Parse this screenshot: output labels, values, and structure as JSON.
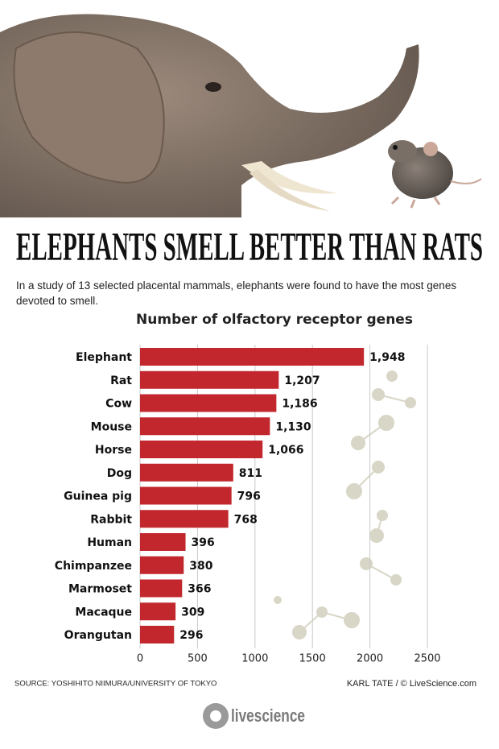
{
  "chart_data": {
    "type": "bar",
    "orientation": "horizontal",
    "title": "ELEPHANTS SMELL BETTER THAN RATS",
    "subtitle": "In a study of 13 selected placental mammals, elephants were found to have the most genes devoted to smell.",
    "chart_title": "Number of olfactory receptor genes",
    "categories": [
      "Elephant",
      "Rat",
      "Cow",
      "Mouse",
      "Horse",
      "Dog",
      "Guinea pig",
      "Rabbit",
      "Human",
      "Chimpanzee",
      "Marmoset",
      "Macaque",
      "Orangutan"
    ],
    "values": [
      1948,
      1207,
      1186,
      1130,
      1066,
      811,
      796,
      768,
      396,
      380,
      366,
      309,
      296
    ],
    "value_labels": [
      "1,948",
      "1,207",
      "1,186",
      "1,130",
      "1,066",
      "811",
      "796",
      "768",
      "396",
      "380",
      "366",
      "309",
      "296"
    ],
    "color": "#c1272d",
    "xlim": [
      0,
      2500
    ],
    "xticks": [
      0,
      500,
      1000,
      1500,
      2000,
      2500
    ],
    "grid": true,
    "source": "SOURCE: YOSHIHITO NIIMURA/UNIVERSITY OF TOKYO",
    "credit": "KARL TATE / © LiveScience.com",
    "logo": "livescience"
  }
}
